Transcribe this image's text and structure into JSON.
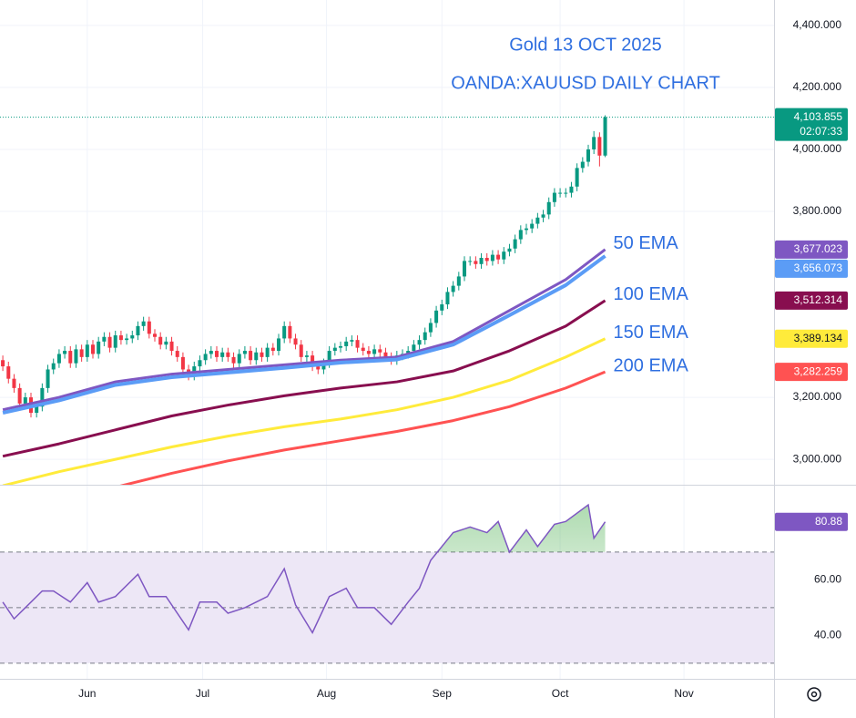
{
  "chart_data": [
    {
      "type": "candlestick",
      "title": "Gold 13 OCT 2025",
      "subtitle": "OANDA:XAUUSD DAILY CHART",
      "x": [
        0,
        1,
        2,
        3,
        4,
        5,
        6,
        7,
        8,
        9,
        10,
        11,
        12,
        13,
        14,
        15,
        16,
        17,
        18,
        19,
        20,
        21,
        22,
        23,
        24,
        25,
        26,
        27,
        28,
        29,
        30,
        31,
        32,
        33,
        34,
        35,
        36,
        37,
        38,
        39,
        40,
        41,
        42,
        43,
        44,
        45,
        46,
        47,
        48,
        49,
        50,
        51,
        52,
        53,
        54,
        55,
        56,
        57,
        58,
        59,
        60,
        61,
        62,
        63,
        64,
        65,
        66,
        67,
        68,
        69,
        70,
        71,
        72,
        73,
        74,
        75,
        76,
        77,
        78,
        79,
        80,
        81,
        82,
        83,
        84,
        85,
        86,
        87,
        88,
        89,
        90,
        91,
        92,
        93,
        94,
        95,
        96,
        97,
        98,
        99,
        100,
        101,
        102,
        103,
        104,
        105,
        106,
        107
      ],
      "open": [
        3320,
        3300,
        3260,
        3230,
        3180,
        3200,
        3150,
        3170,
        3230,
        3290,
        3310,
        3340,
        3350,
        3310,
        3355,
        3330,
        3370,
        3340,
        3380,
        3395,
        3360,
        3400,
        3385,
        3390,
        3400,
        3430,
        3445,
        3405,
        3395,
        3370,
        3380,
        3350,
        3330,
        3290,
        3270,
        3300,
        3320,
        3340,
        3350,
        3330,
        3345,
        3330,
        3310,
        3340,
        3350,
        3320,
        3345,
        3330,
        3360,
        3350,
        3390,
        3430,
        3390,
        3370,
        3330,
        3335,
        3300,
        3290,
        3310,
        3350,
        3360,
        3365,
        3380,
        3385,
        3360,
        3350,
        3340,
        3355,
        3345,
        3330,
        3320,
        3335,
        3340,
        3350,
        3370,
        3385,
        3410,
        3440,
        3480,
        3500,
        3540,
        3560,
        3590,
        3640,
        3640,
        3630,
        3650,
        3640,
        3660,
        3645,
        3670,
        3680,
        3710,
        3740,
        3745,
        3760,
        3780,
        3790,
        3830,
        3860,
        3860,
        3860,
        3880,
        3940,
        3960,
        4000,
        4040,
        3980
      ],
      "high": [
        3335,
        3315,
        3275,
        3245,
        3215,
        3215,
        3185,
        3245,
        3305,
        3325,
        3355,
        3365,
        3365,
        3370,
        3370,
        3385,
        3385,
        3395,
        3410,
        3410,
        3415,
        3415,
        3405,
        3415,
        3445,
        3460,
        3460,
        3420,
        3410,
        3395,
        3395,
        3365,
        3345,
        3305,
        3315,
        3335,
        3355,
        3365,
        3365,
        3360,
        3360,
        3345,
        3355,
        3365,
        3365,
        3360,
        3360,
        3375,
        3375,
        3405,
        3445,
        3445,
        3405,
        3385,
        3350,
        3350,
        3315,
        3325,
        3365,
        3375,
        3380,
        3395,
        3400,
        3400,
        3375,
        3365,
        3370,
        3370,
        3360,
        3345,
        3350,
        3355,
        3365,
        3385,
        3400,
        3425,
        3455,
        3495,
        3515,
        3555,
        3575,
        3605,
        3655,
        3655,
        3655,
        3665,
        3665,
        3675,
        3675,
        3685,
        3695,
        3725,
        3755,
        3760,
        3775,
        3795,
        3805,
        3845,
        3875,
        3875,
        3875,
        3895,
        3955,
        3975,
        4015,
        4059,
        4055,
        4110
      ],
      "low": [
        3285,
        3245,
        3215,
        3165,
        3165,
        3135,
        3135,
        3155,
        3215,
        3275,
        3295,
        3325,
        3295,
        3295,
        3315,
        3315,
        3325,
        3325,
        3365,
        3345,
        3345,
        3370,
        3370,
        3375,
        3385,
        3415,
        3390,
        3380,
        3355,
        3355,
        3335,
        3315,
        3275,
        3255,
        3255,
        3285,
        3305,
        3325,
        3315,
        3315,
        3315,
        3295,
        3295,
        3325,
        3305,
        3305,
        3315,
        3315,
        3335,
        3335,
        3375,
        3375,
        3355,
        3315,
        3315,
        3285,
        3275,
        3275,
        3295,
        3335,
        3345,
        3350,
        3365,
        3345,
        3335,
        3325,
        3325,
        3330,
        3315,
        3305,
        3305,
        3320,
        3325,
        3335,
        3355,
        3370,
        3395,
        3425,
        3465,
        3485,
        3525,
        3545,
        3575,
        3625,
        3615,
        3615,
        3625,
        3625,
        3630,
        3630,
        3655,
        3665,
        3695,
        3725,
        3730,
        3745,
        3765,
        3775,
        3815,
        3845,
        3845,
        3845,
        3865,
        3925,
        3945,
        3985,
        3945,
        3975
      ],
      "close": [
        3300,
        3260,
        3230,
        3180,
        3200,
        3150,
        3170,
        3230,
        3290,
        3310,
        3340,
        3350,
        3310,
        3355,
        3330,
        3370,
        3340,
        3380,
        3395,
        3360,
        3400,
        3385,
        3390,
        3400,
        3430,
        3445,
        3405,
        3395,
        3370,
        3380,
        3350,
        3330,
        3290,
        3270,
        3300,
        3320,
        3340,
        3350,
        3330,
        3345,
        3330,
        3310,
        3340,
        3350,
        3320,
        3345,
        3330,
        3360,
        3350,
        3390,
        3430,
        3390,
        3370,
        3330,
        3335,
        3300,
        3290,
        3310,
        3350,
        3360,
        3365,
        3380,
        3385,
        3360,
        3350,
        3340,
        3355,
        3345,
        3330,
        3320,
        3335,
        3340,
        3350,
        3370,
        3385,
        3410,
        3440,
        3480,
        3500,
        3540,
        3560,
        3590,
        3640,
        3640,
        3630,
        3650,
        3640,
        3660,
        3645,
        3670,
        3680,
        3710,
        3740,
        3745,
        3760,
        3780,
        3790,
        3830,
        3860,
        3860,
        3860,
        3880,
        3940,
        3960,
        4000,
        4040,
        3980,
        4103.855
      ],
      "up_color": "#089981",
      "down_color": "#f23645",
      "last_value_label": "4,103.855",
      "countdown": "02:07:33",
      "xlim": [
        -0.5,
        137
      ],
      "xticks": [
        {
          "value": 15,
          "label": "Jun"
        },
        {
          "value": 35.5,
          "label": "Jul"
        },
        {
          "value": 57.5,
          "label": "Aug"
        },
        {
          "value": 78,
          "label": "Sep"
        },
        {
          "value": 99,
          "label": "Oct"
        },
        {
          "value": 121,
          "label": "Nov"
        }
      ],
      "ylim": [
        2918,
        4482
      ],
      "yticks": [
        {
          "value": 4400,
          "label": "4,400.000"
        },
        {
          "value": 4200,
          "label": "4,200.000"
        },
        {
          "value": 4000,
          "label": "4,000.000"
        },
        {
          "value": 3800,
          "label": "3,800.000"
        },
        {
          "value": 3200,
          "label": "3,200.000"
        },
        {
          "value": 3000,
          "label": "3,000.000"
        }
      ],
      "grid": true,
      "series": [
        {
          "name": "50 EMA",
          "color": "#7e57c2",
          "x": [
            0,
            10,
            20,
            30,
            40,
            50,
            60,
            70,
            80,
            90,
            100,
            107
          ],
          "values": [
            3160,
            3200,
            3250,
            3275,
            3290,
            3305,
            3320,
            3330,
            3380,
            3480,
            3580,
            3677.023
          ],
          "value_label": "3,677.023"
        },
        {
          "color": "#5b9cf6",
          "x": [
            0,
            10,
            20,
            30,
            40,
            50,
            60,
            70,
            80,
            90,
            100,
            107
          ],
          "values": [
            3150,
            3190,
            3240,
            3265,
            3280,
            3295,
            3312,
            3322,
            3370,
            3465,
            3562,
            3656.073
          ],
          "value_label": "3,656.073"
        },
        {
          "name": "100 EMA",
          "color": "#880e4f",
          "x": [
            0,
            10,
            20,
            30,
            40,
            50,
            60,
            70,
            80,
            90,
            100,
            107
          ],
          "values": [
            3010,
            3050,
            3095,
            3140,
            3175,
            3205,
            3230,
            3250,
            3285,
            3350,
            3430,
            3512.314
          ],
          "value_label": "3,512.314"
        },
        {
          "name": "150 EMA",
          "color": "#ffeb3b",
          "x": [
            0,
            10,
            20,
            30,
            40,
            50,
            60,
            70,
            80,
            90,
            100,
            107
          ],
          "values": [
            2915,
            2960,
            3000,
            3040,
            3075,
            3105,
            3130,
            3160,
            3200,
            3255,
            3330,
            3389.134
          ],
          "value_label": "3,389.134"
        },
        {
          "name": "200 EMA",
          "color": "#ff5252",
          "x": [
            20,
            30,
            40,
            50,
            60,
            70,
            80,
            90,
            100,
            107
          ],
          "values": [
            2910,
            2955,
            2995,
            3030,
            3060,
            3090,
            3125,
            3170,
            3230,
            3282.259
          ],
          "value_label": "3,282.259"
        }
      ]
    },
    {
      "type": "line",
      "color": "#7e57c2",
      "x": [
        0,
        2,
        4,
        7,
        9,
        12,
        15,
        17,
        20,
        24,
        26,
        29,
        33,
        35,
        38,
        40,
        43,
        45,
        47,
        50,
        52,
        55,
        58,
        61,
        63,
        66,
        69,
        72,
        74,
        76,
        80,
        83,
        86,
        88,
        90,
        93,
        95,
        98,
        100,
        104,
        105,
        107
      ],
      "values": [
        52,
        46,
        50,
        56,
        56,
        52,
        59,
        52,
        54,
        62,
        54,
        54,
        42,
        52,
        52,
        48,
        50,
        52,
        54,
        64,
        51,
        41,
        54,
        57,
        50,
        50,
        44,
        52,
        57,
        67,
        77,
        79,
        77,
        81,
        70,
        78,
        72,
        80,
        81,
        87,
        75,
        80.88
      ],
      "value_label": "80.88",
      "xlim": [
        -0.5,
        137
      ],
      "ylim": [
        24.4,
        93.9
      ],
      "yticks": [
        {
          "value": 60,
          "label": "60.00"
        },
        {
          "value": 40,
          "label": "40.00"
        }
      ],
      "bands": [
        70,
        50,
        30
      ],
      "band_fill": "#ede7f6",
      "overbought_fill": "#4caf50"
    }
  ]
}
